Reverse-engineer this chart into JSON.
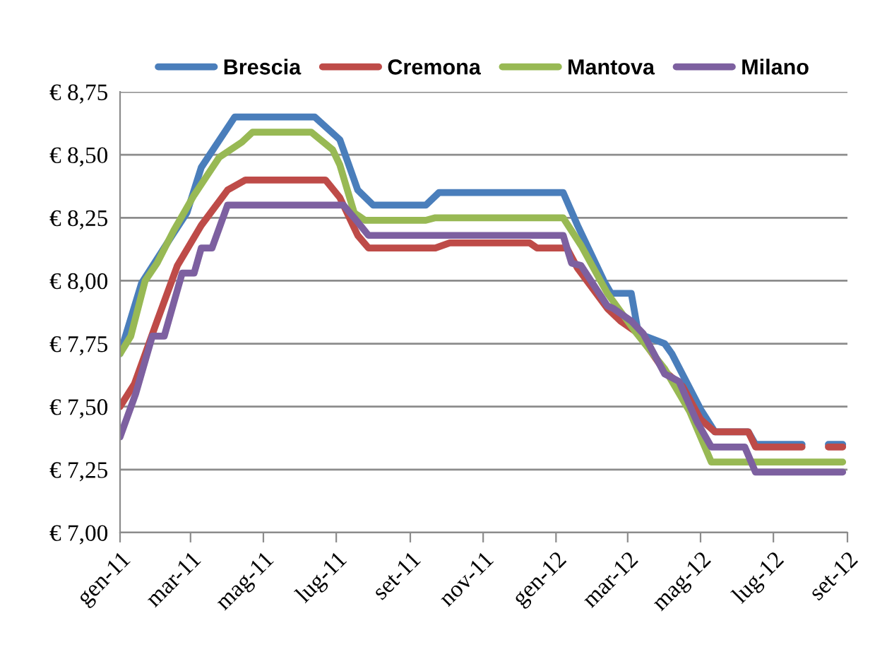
{
  "chart_data": {
    "type": "line",
    "legend": "top",
    "grid": "y",
    "marker": "none",
    "line_style": "solid",
    "xlim": [
      "2011-01-01",
      "2012-09-01"
    ],
    "xticks": [
      {
        "value": "2011-01-01",
        "label": "gen-11"
      },
      {
        "value": "2011-03-01",
        "label": "mar-11"
      },
      {
        "value": "2011-05-01",
        "label": "mag-11"
      },
      {
        "value": "2011-07-01",
        "label": "lug-11"
      },
      {
        "value": "2011-09-01",
        "label": "set-11"
      },
      {
        "value": "2011-11-01",
        "label": "nov-11"
      },
      {
        "value": "2012-01-01",
        "label": "gen-12"
      },
      {
        "value": "2012-03-01",
        "label": "mar-12"
      },
      {
        "value": "2012-05-01",
        "label": "mag-12"
      },
      {
        "value": "2012-07-01",
        "label": "lug-12"
      },
      {
        "value": "2012-09-01",
        "label": "set-12"
      }
    ],
    "ylim": [
      7,
      8.75
    ],
    "yticks": [
      {
        "value": 7,
        "label": "€ 7,00"
      },
      {
        "value": 7.25,
        "label": "€ 7,25"
      },
      {
        "value": 7.5,
        "label": "€ 7,50"
      },
      {
        "value": 7.75,
        "label": "€ 7,75"
      },
      {
        "value": 8,
        "label": "€ 8,00"
      },
      {
        "value": 8.25,
        "label": "€ 8,25"
      },
      {
        "value": 8.5,
        "label": "€ 8,50"
      },
      {
        "value": 8.75,
        "label": "€ 8,75"
      }
    ],
    "series": [
      {
        "name": "Brescia",
        "color": "#4a7ebb",
        "x": [
          "2011-01-01",
          "2011-01-19",
          "2011-02-15",
          "2011-02-26",
          "2011-03-10",
          "2011-04-07",
          "2011-06-13",
          "2011-07-04",
          "2011-07-19",
          "2011-08-01",
          "2011-09-14",
          "2011-09-25",
          "2012-01-07",
          "2012-01-19",
          "2012-02-10",
          "2012-02-16",
          "2012-03-04",
          "2012-03-10",
          "2012-04-01",
          "2012-04-07",
          "2012-04-19",
          "2012-05-01",
          "2012-05-13",
          "2012-06-10",
          "2012-06-16",
          "2012-07-25",
          "2012-08-05",
          "2012-08-16",
          "2012-08-28"
        ],
        "values": [
          7.71,
          7.99,
          8.19,
          8.27,
          8.45,
          8.65,
          8.65,
          8.56,
          8.36,
          8.3,
          8.3,
          8.35,
          8.35,
          8.22,
          8.0,
          7.95,
          7.95,
          7.79,
          7.75,
          7.71,
          7.6,
          7.49,
          7.4,
          7.4,
          7.35,
          7.35,
          null,
          7.35,
          7.35
        ]
      },
      {
        "name": "Cremona",
        "color": "#be4b48",
        "x": [
          "2011-01-01",
          "2011-01-13",
          "2011-02-01",
          "2011-02-18",
          "2011-03-10",
          "2011-04-01",
          "2011-04-16",
          "2011-06-22",
          "2011-07-04",
          "2011-07-19",
          "2011-07-28",
          "2011-09-22",
          "2011-10-04",
          "2011-12-10",
          "2011-12-16",
          "2012-01-10",
          "2012-01-19",
          "2012-02-13",
          "2012-02-24",
          "2012-03-10",
          "2012-04-01",
          "2012-04-16",
          "2012-05-01",
          "2012-05-13",
          "2012-06-10",
          "2012-06-16",
          "2012-07-25",
          "2012-08-05",
          "2012-08-16",
          "2012-08-28"
        ],
        "values": [
          7.5,
          7.59,
          7.84,
          8.06,
          8.22,
          8.36,
          8.4,
          8.4,
          8.33,
          8.18,
          8.13,
          8.13,
          8.15,
          8.15,
          8.13,
          8.13,
          8.05,
          7.89,
          7.84,
          7.79,
          7.64,
          7.58,
          7.45,
          7.4,
          7.4,
          7.34,
          7.34,
          null,
          7.34,
          7.34
        ]
      },
      {
        "name": "Mantova",
        "color": "#98b954",
        "x": [
          "2011-01-01",
          "2011-01-10",
          "2011-01-22",
          "2011-02-01",
          "2011-02-15",
          "2011-03-04",
          "2011-03-25",
          "2011-04-13",
          "2011-04-22",
          "2011-06-10",
          "2011-06-28",
          "2011-07-04",
          "2011-07-16",
          "2011-07-25",
          "2011-09-14",
          "2011-09-22",
          "2012-01-07",
          "2012-01-22",
          "2012-02-13",
          "2012-03-07",
          "2012-04-01",
          "2012-04-22",
          "2012-05-10",
          "2012-08-28"
        ],
        "values": [
          7.71,
          7.78,
          8.0,
          8.07,
          8.2,
          8.34,
          8.49,
          8.55,
          8.59,
          8.59,
          8.52,
          8.46,
          8.27,
          8.24,
          8.24,
          8.25,
          8.25,
          8.14,
          7.95,
          7.8,
          7.65,
          7.48,
          7.28,
          7.28
        ]
      },
      {
        "name": "Milano",
        "color": "#7d60a0",
        "x": [
          "2011-01-01",
          "2011-01-14",
          "2011-01-28",
          "2011-02-07",
          "2011-02-22",
          "2011-03-04",
          "2011-03-10",
          "2011-03-19",
          "2011-04-01",
          "2011-07-07",
          "2011-07-16",
          "2011-07-28",
          "2012-01-07",
          "2012-01-14",
          "2012-01-22",
          "2012-02-13",
          "2012-02-18",
          "2012-03-04",
          "2012-03-14",
          "2012-04-01",
          "2012-04-13",
          "2012-04-28",
          "2012-05-10",
          "2012-06-07",
          "2012-06-16",
          "2012-08-28"
        ],
        "values": [
          7.38,
          7.55,
          7.78,
          7.78,
          8.03,
          8.03,
          8.13,
          8.13,
          8.3,
          8.3,
          8.25,
          8.18,
          8.18,
          8.07,
          8.06,
          7.9,
          7.89,
          7.84,
          7.79,
          7.63,
          7.6,
          7.44,
          7.34,
          7.34,
          7.24,
          7.24
        ]
      }
    ]
  }
}
